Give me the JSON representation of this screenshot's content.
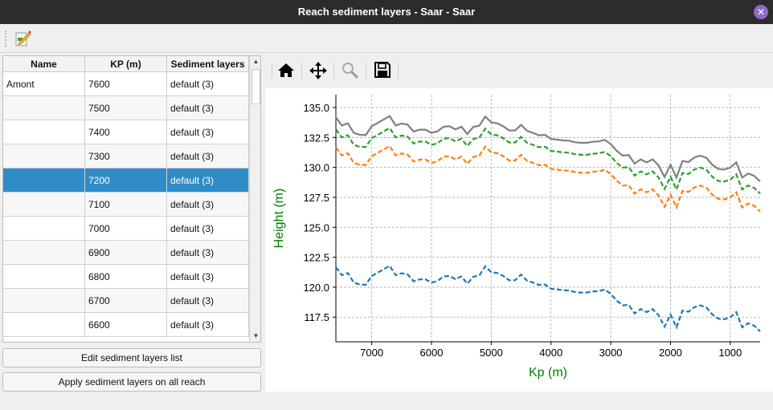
{
  "window": {
    "title": "Reach sediment layers - Saar - Saar",
    "close_icon": "close-icon"
  },
  "toolbar": {
    "edit_icon": "edit-pencil-icon"
  },
  "table": {
    "columns": [
      "Name",
      "KP (m)",
      "Sediment layers"
    ],
    "selected_kp": "7200",
    "rows": [
      {
        "name": "Amont",
        "kp": "7600",
        "layers": "default (3)"
      },
      {
        "name": "",
        "kp": "7500",
        "layers": "default (3)"
      },
      {
        "name": "",
        "kp": "7400",
        "layers": "default (3)"
      },
      {
        "name": "",
        "kp": "7300",
        "layers": "default (3)"
      },
      {
        "name": "",
        "kp": "7200",
        "layers": "default (3)"
      },
      {
        "name": "",
        "kp": "7100",
        "layers": "default (3)"
      },
      {
        "name": "",
        "kp": "7000",
        "layers": "default (3)"
      },
      {
        "name": "",
        "kp": "6900",
        "layers": "default (3)"
      },
      {
        "name": "",
        "kp": "6800",
        "layers": "default (3)"
      },
      {
        "name": "",
        "kp": "6700",
        "layers": "default (3)"
      },
      {
        "name": "",
        "kp": "6600",
        "layers": "default (3)"
      }
    ]
  },
  "buttons": {
    "edit_list": "Edit sediment layers list",
    "apply_all": "Apply sediment layers on all reach"
  },
  "plot_toolbar": {
    "icons": [
      "home-icon",
      "pan-move-icon",
      "zoom-magnifier-icon",
      "save-floppy-icon"
    ]
  },
  "chart_data": {
    "type": "line",
    "xlabel": "Kp (m)",
    "ylabel": "Height (m)",
    "label_color": "#008000",
    "xlim": [
      7600,
      500
    ],
    "ylim": [
      115.44,
      136.07
    ],
    "xticks": [
      7000,
      6000,
      5000,
      4000,
      3000,
      2000,
      1000
    ],
    "yticks": [
      "117.5",
      "120.0",
      "122.5",
      "125.0",
      "127.5",
      "130.0",
      "132.5",
      "135.0"
    ],
    "grid": true,
    "x": [
      7600,
      7500,
      7400,
      7300,
      7200,
      7100,
      7000,
      6900,
      6800,
      6700,
      6600,
      6500,
      6400,
      6300,
      6200,
      6100,
      6000,
      5900,
      5800,
      5700,
      5600,
      5500,
      5400,
      5300,
      5200,
      5100,
      5000,
      4900,
      4800,
      4700,
      4600,
      4500,
      4400,
      4300,
      4200,
      4100,
      4000,
      3900,
      3800,
      3700,
      3600,
      3500,
      3400,
      3300,
      3200,
      3100,
      3000,
      2900,
      2800,
      2700,
      2600,
      2500,
      2400,
      2300,
      2200,
      2100,
      2000,
      1900,
      1800,
      1700,
      1600,
      1500,
      1400,
      1300,
      1200,
      1100,
      1000,
      900,
      800,
      700,
      600,
      500
    ],
    "series": [
      {
        "color": "#808080",
        "style": "solid",
        "values": [
          134.17,
          133.5,
          133.68,
          132.88,
          132.72,
          132.7,
          133.44,
          133.71,
          134.0,
          134.29,
          133.5,
          133.66,
          133.57,
          132.99,
          133.15,
          133.15,
          132.88,
          133.01,
          133.39,
          133.44,
          133.17,
          133.39,
          132.79,
          133.37,
          133.48,
          134.24,
          133.75,
          133.68,
          133.44,
          133.08,
          133.08,
          133.55,
          133.04,
          132.88,
          132.68,
          132.72,
          132.37,
          132.32,
          132.25,
          132.23,
          132.1,
          132.05,
          132.05,
          132.14,
          132.17,
          132.3,
          131.94,
          131.38,
          130.98,
          131.03,
          130.31,
          130.67,
          130.42,
          130.67,
          130.16,
          129.2,
          130.22,
          129.15,
          130.54,
          130.45,
          130.83,
          130.98,
          130.8,
          130.22,
          129.87,
          129.82,
          129.98,
          130.42,
          129.15,
          129.49,
          129.29,
          128.82
        ]
      },
      {
        "color": "#2ca02c",
        "style": "dashed",
        "values": [
          133.17,
          132.5,
          132.68,
          131.88,
          131.72,
          131.7,
          132.44,
          132.71,
          133.0,
          133.29,
          132.5,
          132.66,
          132.57,
          131.99,
          132.15,
          132.15,
          131.88,
          132.01,
          132.39,
          132.44,
          132.17,
          132.39,
          131.79,
          132.37,
          132.48,
          133.24,
          132.75,
          132.68,
          132.44,
          132.08,
          132.08,
          132.55,
          132.04,
          131.88,
          131.68,
          131.72,
          131.37,
          131.32,
          131.25,
          131.23,
          131.1,
          131.05,
          131.05,
          131.14,
          131.17,
          131.3,
          130.94,
          130.38,
          129.98,
          130.03,
          129.31,
          129.67,
          129.42,
          129.67,
          129.16,
          128.2,
          129.22,
          128.15,
          129.54,
          129.45,
          129.83,
          129.98,
          129.8,
          129.22,
          128.87,
          128.82,
          128.98,
          129.42,
          128.15,
          128.49,
          128.29,
          127.82
        ]
      },
      {
        "color": "#ff7f0e",
        "style": "dashed",
        "values": [
          131.67,
          131.0,
          131.18,
          130.38,
          130.22,
          130.2,
          130.94,
          131.21,
          131.5,
          131.79,
          131.0,
          131.16,
          131.07,
          130.49,
          130.65,
          130.65,
          130.38,
          130.51,
          130.89,
          130.94,
          130.67,
          130.89,
          130.29,
          130.87,
          130.98,
          131.74,
          131.25,
          131.18,
          130.94,
          130.58,
          130.58,
          131.05,
          130.54,
          130.38,
          130.18,
          130.22,
          129.87,
          129.82,
          129.75,
          129.73,
          129.6,
          129.55,
          129.55,
          129.64,
          129.67,
          129.8,
          129.44,
          128.88,
          128.48,
          128.53,
          127.81,
          128.17,
          127.92,
          128.17,
          127.66,
          126.7,
          127.72,
          126.65,
          128.04,
          127.95,
          128.33,
          128.48,
          128.3,
          127.72,
          127.37,
          127.32,
          127.48,
          127.92,
          126.65,
          126.99,
          126.79,
          126.32
        ]
      },
      {
        "color": "#1f77b4",
        "style": "dashed",
        "values": [
          121.67,
          121.0,
          121.18,
          120.38,
          120.22,
          120.2,
          120.94,
          121.21,
          121.5,
          121.79,
          121.0,
          121.16,
          121.07,
          120.49,
          120.65,
          120.65,
          120.38,
          120.51,
          120.89,
          120.94,
          120.67,
          120.89,
          120.29,
          120.87,
          120.98,
          121.74,
          121.25,
          121.18,
          120.94,
          120.58,
          120.58,
          121.05,
          120.54,
          120.38,
          120.18,
          120.22,
          119.87,
          119.82,
          119.75,
          119.73,
          119.6,
          119.55,
          119.55,
          119.64,
          119.67,
          119.8,
          119.44,
          118.88,
          118.48,
          118.53,
          117.81,
          118.17,
          117.92,
          118.17,
          117.66,
          116.7,
          117.72,
          116.65,
          118.04,
          117.95,
          118.33,
          118.48,
          118.3,
          117.72,
          117.37,
          117.32,
          117.48,
          117.92,
          116.65,
          116.99,
          116.79,
          116.32
        ]
      }
    ]
  }
}
